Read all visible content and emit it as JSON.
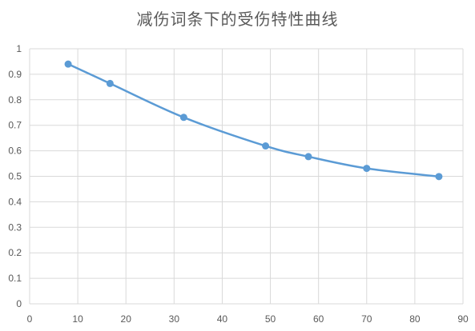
{
  "chart_data": {
    "type": "line",
    "title": "减伤词条下的受伤特性曲线",
    "xlabel": "",
    "ylabel": "",
    "xlim": [
      0,
      90
    ],
    "ylim": [
      0,
      1
    ],
    "xticks": [
      0,
      10,
      20,
      30,
      40,
      50,
      60,
      70,
      80,
      90
    ],
    "yticks": [
      0,
      0.1,
      0.2,
      0.3,
      0.4,
      0.5,
      0.6,
      0.7,
      0.8,
      0.9,
      1
    ],
    "grid": true,
    "smooth": true,
    "series": [
      {
        "x": [
          8,
          16.7,
          32,
          49,
          57.9,
          70,
          85
        ],
        "y": [
          0.94,
          0.864,
          0.731,
          0.619,
          0.577,
          0.531,
          0.499
        ]
      }
    ],
    "colors": {
      "series": "#5B9BD5",
      "grid": "#D9D9D9",
      "text": "#595959"
    }
  }
}
